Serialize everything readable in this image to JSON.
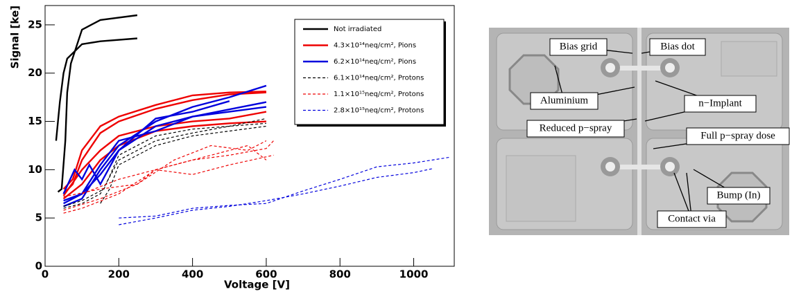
{
  "chart_data": {
    "type": "line",
    "xlabel": "Voltage [V]",
    "ylabel": "Signal [ke]",
    "xlim": [
      0,
      1110
    ],
    "ylim": [
      0,
      27
    ],
    "xticks": [
      0,
      200,
      400,
      600,
      800,
      1000
    ],
    "yticks": [
      0,
      5,
      10,
      15,
      20,
      25
    ],
    "legend": "upper right",
    "series": [
      {
        "name": "Not irradiated",
        "color": "#000000",
        "dashed": false,
        "lines": [
          {
            "x": [
              30,
              40,
              50,
              60,
              100,
              150,
              250
            ],
            "values": [
              13,
              17,
              20,
              21.5,
              23,
              23.3,
              23.6
            ]
          },
          {
            "x": [
              35,
              45,
              55,
              60,
              70,
              100,
              150,
              250
            ],
            "values": [
              7.7,
              8,
              13,
              18,
              21,
              24.5,
              25.5,
              26
            ]
          }
        ]
      },
      {
        "name": "4.3×10¹⁴neq/cm², Pions",
        "color": "#ee0000",
        "dashed": false,
        "lines": [
          {
            "x": [
              50,
              75,
              100,
              150,
              200,
              300,
              400,
              500,
              600
            ],
            "values": [
              8,
              9,
              12,
              14.5,
              15.5,
              16.7,
              17.7,
              18,
              18.1
            ]
          },
          {
            "x": [
              50,
              75,
              100,
              150,
              200,
              300,
              400,
              500,
              600
            ],
            "values": [
              7.5,
              8.5,
              11,
              13.8,
              15,
              16.3,
              17.2,
              17.8,
              18
            ]
          },
          {
            "x": [
              50,
              100,
              150,
              200,
              300,
              400,
              500,
              600
            ],
            "values": [
              7.3,
              10,
              12,
              13.5,
              14.5,
              15,
              15.3,
              16
            ]
          },
          {
            "x": [
              50,
              100,
              150,
              200,
              300,
              400,
              500,
              600
            ],
            "values": [
              7,
              8.5,
              11,
              12.5,
              14,
              14.5,
              14.8,
              15
            ]
          }
        ]
      },
      {
        "name": "6.2×10¹⁴neq/cm², Pions",
        "color": "#0000dd",
        "dashed": false,
        "lines": [
          {
            "x": [
              50,
              100,
              150,
              200,
              300,
              400,
              500,
              600
            ],
            "values": [
              6.2,
              7,
              10,
              12.5,
              15,
              16.5,
              17.5,
              18.7
            ]
          },
          {
            "x": [
              50,
              100,
              150,
              200,
              300,
              400,
              600
            ],
            "values": [
              6.5,
              7.5,
              10.5,
              13,
              14,
              15.5,
              17
            ]
          },
          {
            "x": [
              50,
              80,
              100,
              120,
              150,
              200,
              300,
              400,
              500
            ],
            "values": [
              7.5,
              10,
              9,
              10.5,
              8.5,
              12,
              15.3,
              16,
              17.1
            ]
          },
          {
            "x": [
              50,
              100,
              150,
              200,
              300,
              400,
              600
            ],
            "values": [
              6.8,
              7.5,
              9.5,
              12,
              14.5,
              15.5,
              16.5
            ]
          }
        ]
      },
      {
        "name": "6.1×10¹⁴neq/cm², Protons",
        "color": "#000000",
        "dashed": true,
        "lines": [
          {
            "x": [
              50,
              100,
              150,
              200,
              300,
              400,
              500,
              600
            ],
            "values": [
              6,
              6.5,
              7.5,
              11,
              13,
              13.8,
              14.5,
              15.3
            ]
          },
          {
            "x": [
              50,
              100,
              160,
              200,
              300,
              400,
              600
            ],
            "values": [
              6.2,
              6.8,
              8,
              11.5,
              13.5,
              14.2,
              14.8
            ]
          },
          {
            "x": [
              150,
              175,
              200,
              300,
              400,
              500,
              600
            ],
            "values": [
              6.5,
              8,
              10.5,
              12.5,
              13.5,
              14,
              14.5
            ]
          }
        ]
      },
      {
        "name": "1.1×10¹⁵neq/cm², Protons",
        "color": "#ee0000",
        "dashed": true,
        "lines": [
          {
            "x": [
              50,
              100,
              200,
              300,
              400,
              500,
              600,
              620
            ],
            "values": [
              5.5,
              6,
              7.5,
              10,
              11,
              11.5,
              12.2,
              13
            ]
          },
          {
            "x": [
              50,
              150,
              250,
              350,
              450,
              550,
              600
            ],
            "values": [
              5.8,
              7,
              8.5,
              11,
              12.5,
              12,
              13
            ]
          },
          {
            "x": [
              50,
              150,
              250,
              300,
              400,
              500,
              620
            ],
            "values": [
              7.2,
              8,
              8.5,
              10,
              9.5,
              10.5,
              11.5
            ]
          },
          {
            "x": [
              100,
              200,
              300,
              400,
              550,
              600
            ],
            "values": [
              7.5,
              9,
              10,
              11,
              12.5,
              11
            ]
          }
        ]
      },
      {
        "name": "2.8×10¹⁵neq/cm², Protons",
        "color": "#0000dd",
        "dashed": true,
        "lines": [
          {
            "x": [
              200,
              300,
              400,
              500,
              600,
              700,
              800,
              900,
              1000,
              1050
            ],
            "values": [
              4.3,
              5,
              5.8,
              6.2,
              6.8,
              7.5,
              8.3,
              9.2,
              9.7,
              10.1
            ]
          },
          {
            "x": [
              200,
              300,
              400,
              500,
              600,
              700,
              800,
              900,
              1000,
              1100
            ],
            "values": [
              5,
              5.2,
              6,
              6.3,
              6.5,
              7.8,
              9,
              10.3,
              10.7,
              11.3
            ]
          }
        ]
      }
    ]
  },
  "figure": {
    "labels": [
      "Bias grid",
      "Bias dot",
      "Aluminium",
      "n−Implant",
      "Reduced p−spray",
      "Full p−spray dose",
      "Bump (In)",
      "Contact via"
    ]
  }
}
